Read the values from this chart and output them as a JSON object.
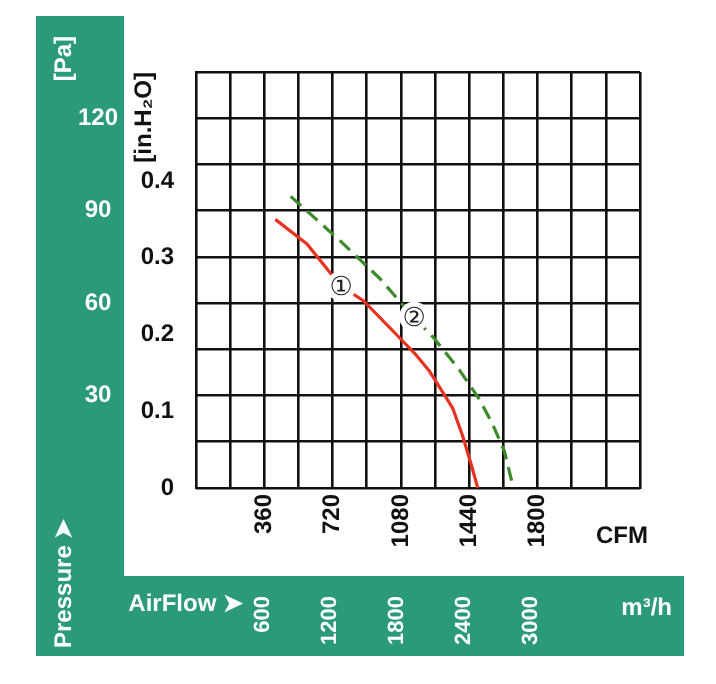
{
  "chart_data": {
    "type": "line",
    "xlabel": "CFM",
    "x2label": "AirFlow ➤",
    "ylabel": "[in.H₂O]",
    "y2label": "Pressure ➤",
    "annotations": [
      "[Pa]",
      "m³/h",
      {
        "text": "①",
        "x": 765,
        "y": 0.263
      },
      {
        "text": "②",
        "x": 1150,
        "y": 0.223
      }
    ],
    "series": [
      {
        "color": "#e8321e",
        "line_style": "solid",
        "x": [
          418,
          585,
          760,
          882,
          1056,
          1161,
          1231,
          1353,
          1405,
          1450,
          1485
        ],
        "values": [
          0.35,
          0.318,
          0.264,
          0.244,
          0.2,
          0.173,
          0.152,
          0.104,
          0.068,
          0.031,
          0
        ]
      },
      {
        "color": "#3d8a2a",
        "line_style": "dashed",
        "x": [
          499,
          760,
          969,
          1144,
          1248,
          1388,
          1492,
          1562,
          1625,
          1673
        ],
        "values": [
          0.38,
          0.322,
          0.273,
          0.223,
          0.197,
          0.154,
          0.116,
          0.084,
          0.048,
          0
        ]
      }
    ],
    "xlim": [
      0,
      2340
    ],
    "xticks": [
      {
        "value": 0,
        "label": null
      },
      {
        "value": 180,
        "label": null
      },
      360,
      {
        "value": 540,
        "label": null
      },
      720,
      {
        "value": 900,
        "label": null
      },
      1080,
      {
        "value": 1260,
        "label": null
      },
      1440,
      {
        "value": 1620,
        "label": null
      },
      1800,
      {
        "value": 1980,
        "label": null
      },
      {
        "value": 2160,
        "label": null
      },
      {
        "value": 2340,
        "label": null
      }
    ],
    "x2lim": [
      0,
      3976
    ],
    "x2ticks": [
      600,
      1200,
      1800,
      2400,
      3000
    ],
    "ylim": [
      0,
      0.542
    ],
    "yticks": [
      0,
      0.1,
      0.2,
      0.3,
      0.4
    ],
    "y2lim": [
      0,
      135
    ],
    "y2ticks": [
      {
        "value": 0,
        "label": null
      },
      {
        "value": 15,
        "label": null
      },
      30,
      {
        "value": 45,
        "label": null
      },
      60,
      {
        "value": 75,
        "label": null
      },
      90,
      {
        "value": 105,
        "label": null
      },
      120,
      {
        "value": 135,
        "label": null
      }
    ],
    "grid": true,
    "legend": false,
    "marker": "none"
  }
}
